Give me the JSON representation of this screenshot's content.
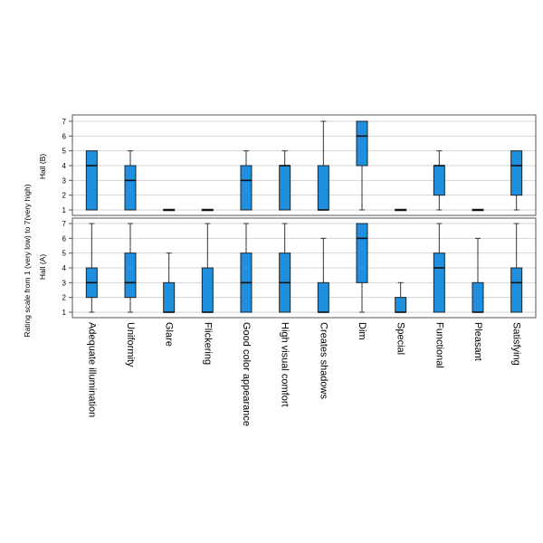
{
  "chart_data": {
    "type": "boxplot",
    "ylabel": "Rating scale from 1 (very low) to 7(very high)",
    "ylim": [
      1,
      7
    ],
    "yticks": [
      1,
      2,
      3,
      4,
      5,
      6,
      7
    ],
    "grid": true,
    "box_color": "#1f90e0",
    "categories": [
      "Adequate illumination",
      "Uniformity",
      "Glare",
      "Flickering",
      "Good color appearance",
      "High visual comfort",
      "Creates shadows",
      "Dim",
      "Special",
      "Functional",
      "Pleasant",
      "Satisfying"
    ],
    "panels": [
      {
        "label": "Hall (B)",
        "boxes": [
          {
            "min": 1,
            "q1": 1,
            "median": 4,
            "q3": 5,
            "max": 5
          },
          {
            "min": 1,
            "q1": 1,
            "median": 3,
            "q3": 4,
            "max": 5
          },
          {
            "min": 1,
            "q1": 1,
            "median": 1,
            "q3": 1,
            "max": 1
          },
          {
            "min": 1,
            "q1": 1,
            "median": 1,
            "q3": 1,
            "max": 1
          },
          {
            "min": 1,
            "q1": 1,
            "median": 3,
            "q3": 4,
            "max": 5
          },
          {
            "min": 1,
            "q1": 1,
            "median": 4,
            "q3": 4,
            "max": 5
          },
          {
            "min": 1,
            "q1": 1,
            "median": 1,
            "q3": 4,
            "max": 7
          },
          {
            "min": 1,
            "q1": 4,
            "median": 6,
            "q3": 7,
            "max": 7
          },
          {
            "min": 1,
            "q1": 1,
            "median": 1,
            "q3": 1,
            "max": 1
          },
          {
            "min": 1,
            "q1": 2,
            "median": 4,
            "q3": 4,
            "max": 5
          },
          {
            "min": 1,
            "q1": 1,
            "median": 1,
            "q3": 1,
            "max": 1
          },
          {
            "min": 1,
            "q1": 2,
            "median": 4,
            "q3": 5,
            "max": 5
          }
        ]
      },
      {
        "label": "Hall (A)",
        "boxes": [
          {
            "min": 1,
            "q1": 2,
            "median": 3,
            "q3": 4,
            "max": 7
          },
          {
            "min": 1,
            "q1": 2,
            "median": 3,
            "q3": 5,
            "max": 7
          },
          {
            "min": 1,
            "q1": 1,
            "median": 1,
            "q3": 3,
            "max": 5
          },
          {
            "min": 1,
            "q1": 1,
            "median": 1,
            "q3": 4,
            "max": 7
          },
          {
            "min": 1,
            "q1": 1,
            "median": 3,
            "q3": 5,
            "max": 7
          },
          {
            "min": 1,
            "q1": 1,
            "median": 3,
            "q3": 5,
            "max": 7
          },
          {
            "min": 1,
            "q1": 1,
            "median": 1,
            "q3": 3,
            "max": 6
          },
          {
            "min": 1,
            "q1": 3,
            "median": 6,
            "q3": 7,
            "max": 7
          },
          {
            "min": 1,
            "q1": 1,
            "median": 1,
            "q3": 2,
            "max": 3
          },
          {
            "min": 1,
            "q1": 1,
            "median": 4,
            "q3": 5,
            "max": 7
          },
          {
            "min": 1,
            "q1": 1,
            "median": 1,
            "q3": 3,
            "max": 6
          },
          {
            "min": 1,
            "q1": 1,
            "median": 3,
            "q3": 4,
            "max": 7
          }
        ]
      }
    ]
  }
}
